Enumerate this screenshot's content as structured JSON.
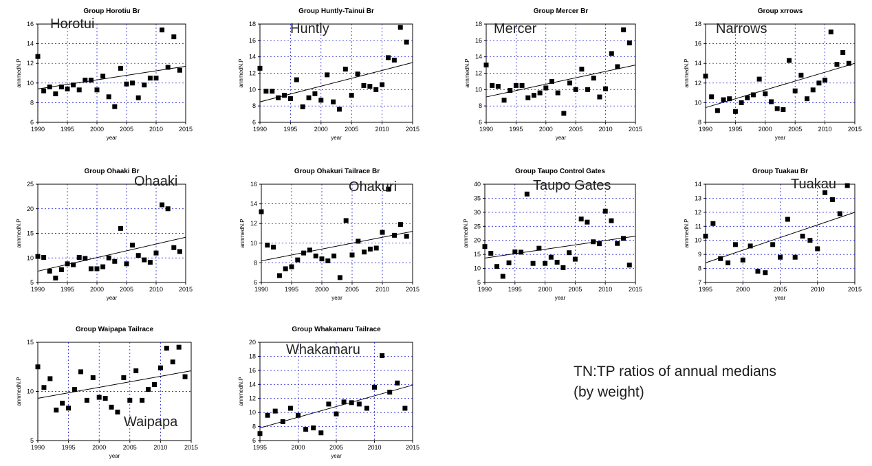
{
  "note": {
    "line1": "TN:TP ratios of annual medians",
    "line2": "(by weight)"
  },
  "colors": {
    "marker": "#000000",
    "trend_line": "#000000",
    "grid": "#0000cc",
    "axis": "#000000",
    "overlay_text": "#222222"
  },
  "chart_data": [
    {
      "type": "scatter",
      "title": "Group Horotiu Br",
      "overlay_label": "Horotui",
      "xlabel": "year",
      "ylabel": "annmedN.P",
      "xlim": [
        1990,
        2015
      ],
      "ylim": [
        6,
        16
      ],
      "xticks": [
        1990,
        1995,
        2000,
        2005,
        2010,
        2015
      ],
      "yticks": [
        6,
        8,
        10,
        12,
        14,
        16
      ],
      "grid": true,
      "x": [
        1990,
        1991,
        1992,
        1993,
        1994,
        1995,
        1996,
        1997,
        1998,
        1999,
        2000,
        2001,
        2002,
        2003,
        2004,
        2005,
        2006,
        2007,
        2008,
        2009,
        2010,
        2011,
        2012,
        2013,
        2014
      ],
      "y": [
        12.7,
        9.2,
        9.6,
        8.9,
        9.6,
        9.4,
        9.8,
        9.3,
        10.3,
        10.3,
        9.3,
        10.7,
        8.6,
        7.6,
        11.5,
        9.9,
        10.0,
        8.5,
        9.8,
        10.5,
        10.5,
        15.4,
        11.6,
        14.7,
        11.3
      ],
      "trend": [
        [
          1990,
          9.4
        ],
        [
          2015,
          11.7
        ]
      ]
    },
    {
      "type": "scatter",
      "title": "Group Huntly-Tainui Br",
      "overlay_label": "Huntly",
      "xlabel": "year",
      "ylabel": "annmedN.P",
      "xlim": [
        1990,
        2015
      ],
      "ylim": [
        6,
        18
      ],
      "xticks": [
        1990,
        1995,
        2000,
        2005,
        2010,
        2015
      ],
      "yticks": [
        6,
        8,
        10,
        12,
        14,
        16,
        18
      ],
      "grid": true,
      "x": [
        1990,
        1991,
        1992,
        1993,
        1994,
        1995,
        1996,
        1997,
        1998,
        1999,
        2000,
        2001,
        2002,
        2003,
        2004,
        2005,
        2006,
        2007,
        2008,
        2009,
        2010,
        2011,
        2012,
        2013,
        2014
      ],
      "y": [
        12.6,
        9.8,
        9.8,
        9.0,
        9.3,
        8.9,
        11.2,
        7.9,
        9.0,
        9.5,
        8.7,
        11.8,
        8.5,
        7.6,
        12.5,
        9.3,
        11.9,
        10.5,
        10.4,
        10.0,
        10.6,
        13.9,
        13.6,
        17.6,
        15.8
      ],
      "trend": [
        [
          1990,
          8.5
        ],
        [
          2015,
          13.3
        ]
      ]
    },
    {
      "type": "scatter",
      "title": "Group Mercer Br",
      "overlay_label": "Mercer",
      "xlabel": "year",
      "ylabel": "annmedN.P",
      "xlim": [
        1990,
        2015
      ],
      "ylim": [
        6,
        18
      ],
      "xticks": [
        1990,
        1995,
        2000,
        2005,
        2010,
        2015
      ],
      "yticks": [
        6,
        8,
        10,
        12,
        14,
        16,
        18
      ],
      "grid": true,
      "x": [
        1990,
        1991,
        1992,
        1993,
        1994,
        1995,
        1996,
        1997,
        1998,
        1999,
        2000,
        2001,
        2002,
        2003,
        2004,
        2005,
        2006,
        2007,
        2008,
        2009,
        2010,
        2011,
        2012,
        2013,
        2014
      ],
      "y": [
        13.0,
        10.5,
        10.4,
        8.7,
        9.9,
        10.5,
        10.5,
        9.0,
        9.3,
        9.6,
        10.2,
        11.0,
        9.6,
        7.1,
        10.8,
        10.0,
        12.5,
        10.0,
        11.4,
        9.1,
        10.1,
        14.4,
        12.8,
        17.3,
        15.7
      ],
      "trend": [
        [
          1990,
          9.1
        ],
        [
          2015,
          13.0
        ]
      ]
    },
    {
      "type": "scatter",
      "title": "Group xrrows",
      "overlay_label": "Narrows",
      "xlabel": "year",
      "ylabel": "annmedN.P",
      "xlim": [
        1990,
        2015
      ],
      "ylim": [
        8,
        18
      ],
      "xticks": [
        1990,
        1995,
        2000,
        2005,
        2010,
        2015
      ],
      "yticks": [
        8,
        10,
        12,
        14,
        16,
        18
      ],
      "grid": true,
      "x": [
        1990,
        1991,
        1992,
        1993,
        1994,
        1995,
        1996,
        1997,
        1998,
        1999,
        2000,
        2001,
        2002,
        2003,
        2004,
        2005,
        2006,
        2007,
        2008,
        2009,
        2010,
        2011,
        2012,
        2013,
        2014
      ],
      "y": [
        12.7,
        10.6,
        9.2,
        10.3,
        10.4,
        9.1,
        10.0,
        10.5,
        10.8,
        12.4,
        10.9,
        10.1,
        9.4,
        9.3,
        14.3,
        11.2,
        12.8,
        10.4,
        11.3,
        12.0,
        12.3,
        17.2,
        13.9,
        15.1,
        14.0
      ],
      "trend": [
        [
          1990,
          9.5
        ],
        [
          2015,
          14.0
        ]
      ]
    },
    {
      "type": "scatter",
      "title": "Group Ohaaki Br",
      "overlay_label": "Ohaaki",
      "xlabel": "year",
      "ylabel": "annmedN.P",
      "xlim": [
        1990,
        2015
      ],
      "ylim": [
        5,
        25
      ],
      "xticks": [
        1990,
        1995,
        2000,
        2005,
        2010,
        2015
      ],
      "yticks": [
        5,
        10,
        15,
        20,
        25
      ],
      "grid": true,
      "x": [
        1990,
        1991,
        1992,
        1993,
        1994,
        1995,
        1996,
        1997,
        1998,
        1999,
        2000,
        2001,
        2002,
        2003,
        2004,
        2005,
        2006,
        2007,
        2008,
        2009,
        2010,
        2011,
        2012,
        2013,
        2014
      ],
      "y": [
        10.3,
        10.1,
        7.3,
        5.9,
        7.6,
        8.8,
        8.6,
        10.1,
        9.9,
        7.8,
        7.8,
        8.2,
        10.0,
        9.3,
        16.0,
        8.8,
        12.6,
        10.5,
        9.6,
        9.1,
        11.0,
        20.8,
        20.0,
        12.1,
        11.3
      ],
      "trend": [
        [
          1990,
          7.3
        ],
        [
          2015,
          14.2
        ]
      ]
    },
    {
      "type": "scatter",
      "title": "Group Ohakuri Tailrace Br",
      "overlay_label": "Ohakuri",
      "xlabel": "year",
      "ylabel": "annmedN.P",
      "xlim": [
        1990,
        2015
      ],
      "ylim": [
        6,
        16
      ],
      "xticks": [
        1990,
        1995,
        2000,
        2005,
        2010,
        2015
      ],
      "yticks": [
        6,
        8,
        10,
        12,
        14,
        16
      ],
      "grid": true,
      "x": [
        1990,
        1991,
        1992,
        1993,
        1994,
        1995,
        1996,
        1997,
        1998,
        1999,
        2000,
        2001,
        2002,
        2003,
        2004,
        2005,
        2006,
        2007,
        2008,
        2009,
        2010,
        2011,
        2012,
        2013,
        2014
      ],
      "y": [
        13.2,
        9.8,
        9.6,
        6.7,
        7.4,
        7.6,
        8.3,
        9.0,
        9.3,
        8.7,
        8.4,
        8.2,
        8.7,
        6.5,
        12.3,
        8.8,
        10.2,
        9.1,
        9.4,
        9.5,
        11.1,
        15.5,
        10.8,
        11.9,
        10.7
      ],
      "trend": [
        [
          1990,
          8.2
        ],
        [
          2015,
          11.2
        ]
      ]
    },
    {
      "type": "scatter",
      "title": "Group Taupo Control Gates",
      "overlay_label": "Taupo Gates",
      "xlabel": "year",
      "ylabel": "annmedN.P",
      "xlim": [
        1990,
        2015
      ],
      "ylim": [
        5,
        40
      ],
      "xticks": [
        1990,
        1995,
        2000,
        2005,
        2010,
        2015
      ],
      "yticks": [
        5,
        10,
        15,
        20,
        25,
        30,
        35,
        40
      ],
      "grid": true,
      "x": [
        1990,
        1991,
        1992,
        1993,
        1994,
        1995,
        1996,
        1997,
        1998,
        1999,
        2000,
        2001,
        2002,
        2003,
        2004,
        2005,
        2006,
        2007,
        2008,
        2009,
        2010,
        2011,
        2012,
        2013,
        2014
      ],
      "y": [
        17.8,
        15.4,
        10.7,
        7.2,
        12.0,
        15.9,
        15.8,
        36.5,
        11.8,
        17.2,
        11.8,
        14.0,
        12.2,
        10.3,
        15.6,
        13.3,
        27.6,
        26.5,
        19.5,
        18.8,
        30.4,
        27.0,
        18.9,
        20.7,
        11.2
      ],
      "trend": [
        [
          1990,
          13.7
        ],
        [
          2015,
          21.5
        ]
      ]
    },
    {
      "type": "scatter",
      "title": "Group Tuakau Br",
      "overlay_label": "Tuakau",
      "xlabel": "year",
      "ylabel": "annmedN.P",
      "xlim": [
        1995,
        2015
      ],
      "ylim": [
        7,
        14
      ],
      "xticks": [
        1995,
        2000,
        2005,
        2010,
        2015
      ],
      "yticks": [
        7,
        8,
        9,
        10,
        11,
        12,
        13,
        14
      ],
      "grid": true,
      "x": [
        1995,
        1996,
        1997,
        1998,
        1999,
        2000,
        2001,
        2002,
        2003,
        2004,
        2005,
        2006,
        2007,
        2008,
        2009,
        2010,
        2011,
        2012,
        2013,
        2014
      ],
      "y": [
        10.3,
        11.2,
        8.7,
        8.4,
        9.7,
        8.6,
        9.6,
        7.8,
        7.7,
        9.7,
        8.8,
        11.5,
        8.8,
        10.3,
        10.0,
        9.4,
        13.4,
        12.9,
        11.9,
        13.9
      ],
      "trend": [
        [
          1995,
          8.4
        ],
        [
          2015,
          12.0
        ]
      ]
    },
    {
      "type": "scatter",
      "title": "Group Waipapa Tailrace",
      "overlay_label": "Waipapa",
      "xlabel": "year",
      "ylabel": "annmedN.P",
      "xlim": [
        1990,
        2015
      ],
      "ylim": [
        5,
        15
      ],
      "xticks": [
        1990,
        1995,
        2000,
        2005,
        2010,
        2015
      ],
      "yticks": [
        5,
        10,
        15
      ],
      "grid": true,
      "x": [
        1990,
        1991,
        1992,
        1993,
        1994,
        1995,
        1996,
        1997,
        1998,
        1999,
        2000,
        2001,
        2002,
        2003,
        2004,
        2005,
        2006,
        2007,
        2008,
        2009,
        2010,
        2011,
        2012,
        2013,
        2014
      ],
      "y": [
        12.5,
        10.4,
        11.3,
        8.1,
        8.8,
        8.3,
        10.2,
        12.0,
        9.1,
        11.4,
        9.4,
        9.3,
        8.4,
        7.9,
        11.4,
        9.1,
        12.1,
        9.1,
        10.2,
        10.7,
        12.4,
        14.4,
        13.0,
        14.5,
        11.5
      ],
      "trend": [
        [
          1990,
          9.3
        ],
        [
          2015,
          12.1
        ]
      ]
    },
    {
      "type": "scatter",
      "title": "Group Whakamaru Tailrace",
      "overlay_label": "Whakamaru",
      "xlabel": "year",
      "ylabel": "annmedN.P",
      "xlim": [
        1995,
        2015
      ],
      "ylim": [
        6,
        20
      ],
      "xticks": [
        1995,
        2000,
        2005,
        2010,
        2015
      ],
      "yticks": [
        6,
        8,
        10,
        12,
        14,
        16,
        18,
        20
      ],
      "grid": true,
      "x": [
        1995,
        1996,
        1997,
        1998,
        1999,
        2000,
        2001,
        2002,
        2003,
        2004,
        2005,
        2006,
        2007,
        2008,
        2009,
        2010,
        2011,
        2012,
        2013,
        2014
      ],
      "y": [
        7.0,
        9.6,
        10.2,
        8.7,
        10.6,
        9.6,
        7.6,
        7.8,
        7.1,
        11.2,
        9.8,
        11.5,
        11.4,
        11.2,
        10.6,
        13.6,
        18.1,
        12.9,
        14.2,
        10.6
      ],
      "trend": [
        [
          1995,
          7.8
        ],
        [
          2015,
          13.9
        ]
      ]
    }
  ]
}
